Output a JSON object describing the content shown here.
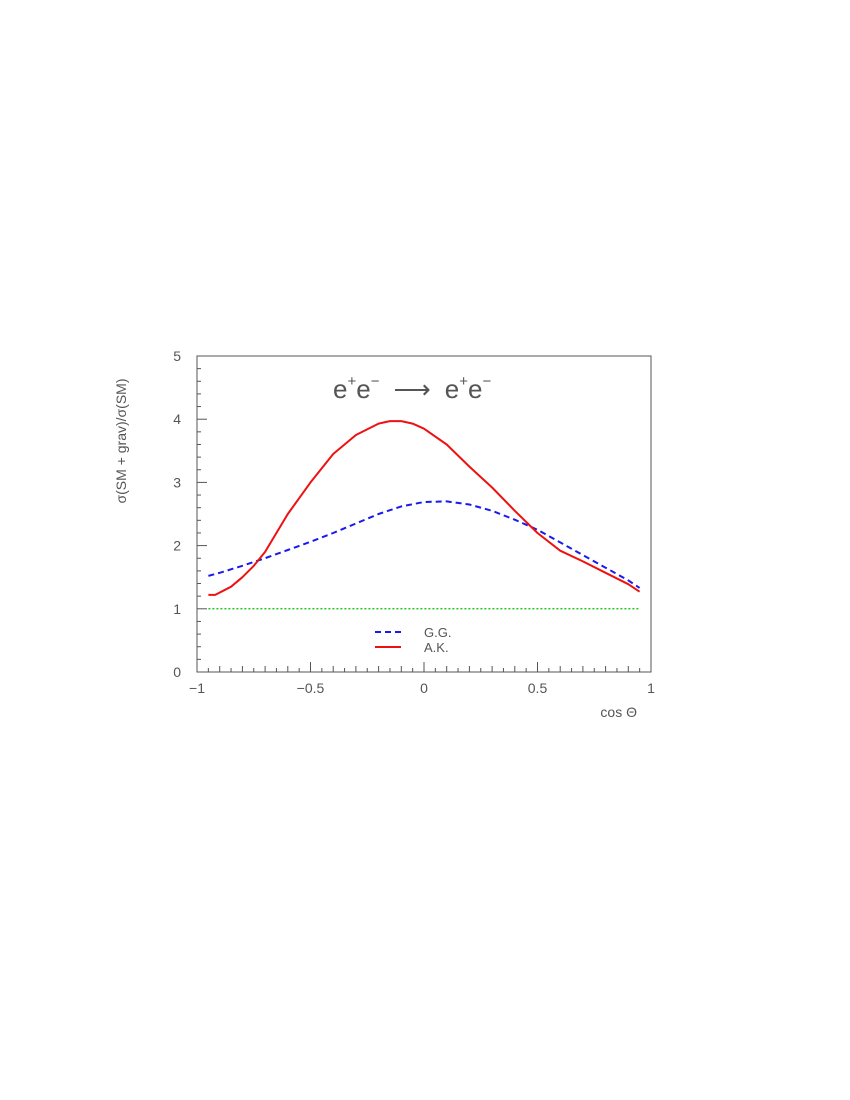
{
  "chart_data": {
    "type": "line",
    "title": {
      "lhs_base1": "e",
      "lhs_sup1": "+",
      "lhs_base2": "e",
      "lhs_sup2": "−",
      "arrow": "⟶",
      "rhs_base1": "e",
      "rhs_sup1": "+",
      "rhs_base2": "e",
      "rhs_sup2": "−"
    },
    "xlabel": "cos Θ",
    "ylabel": "σ(SM + grav)/σ(SM)",
    "xlim": [
      -1,
      1
    ],
    "ylim": [
      0,
      5
    ],
    "x_ticks": [
      -1,
      -0.5,
      0,
      0.5,
      1
    ],
    "x_tick_labels": [
      "−1",
      "−0.5",
      "0",
      "0.5",
      "1"
    ],
    "y_ticks": [
      0,
      1,
      2,
      3,
      4,
      5
    ],
    "y_tick_labels": [
      "0",
      "1",
      "2",
      "3",
      "4",
      "5"
    ],
    "grid": false,
    "legend": {
      "placement": "bottom-center"
    },
    "series": [
      {
        "name": "G.G.",
        "color": "#1a1aee",
        "style": "dashed",
        "x": [
          -0.95,
          -0.9,
          -0.8,
          -0.7,
          -0.6,
          -0.5,
          -0.4,
          -0.3,
          -0.2,
          -0.1,
          0.0,
          0.1,
          0.2,
          0.3,
          0.4,
          0.5,
          0.6,
          0.7,
          0.8,
          0.9,
          0.95
        ],
        "y": [
          1.52,
          1.57,
          1.68,
          1.8,
          1.93,
          2.06,
          2.2,
          2.35,
          2.5,
          2.62,
          2.69,
          2.7,
          2.65,
          2.55,
          2.41,
          2.25,
          2.05,
          1.85,
          1.65,
          1.45,
          1.33
        ]
      },
      {
        "name": "A.K.",
        "color": "#ee1111",
        "style": "solid",
        "x": [
          -0.95,
          -0.92,
          -0.85,
          -0.8,
          -0.75,
          -0.7,
          -0.65,
          -0.6,
          -0.5,
          -0.4,
          -0.3,
          -0.2,
          -0.15,
          -0.1,
          -0.05,
          0.0,
          0.1,
          0.2,
          0.3,
          0.4,
          0.5,
          0.6,
          0.7,
          0.8,
          0.9,
          0.95
        ],
        "y": [
          1.22,
          1.22,
          1.35,
          1.5,
          1.68,
          1.9,
          2.2,
          2.5,
          3.0,
          3.45,
          3.75,
          3.93,
          3.97,
          3.97,
          3.93,
          3.85,
          3.6,
          3.25,
          2.92,
          2.55,
          2.2,
          1.92,
          1.75,
          1.57,
          1.39,
          1.27
        ]
      },
      {
        "name": "",
        "color": "#22cc22",
        "style": "dotted",
        "x": [
          -0.95,
          0.95
        ],
        "y": [
          1.0,
          1.0
        ]
      }
    ]
  }
}
